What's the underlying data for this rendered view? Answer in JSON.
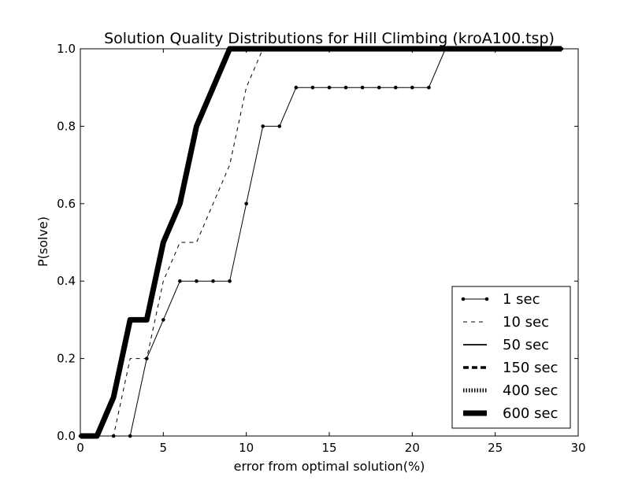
{
  "chart_data": {
    "type": "line",
    "title": "Solution Quality Distributions for Hill Climbing (kroA100.tsp)",
    "xlabel": "error from optimal solution(%)",
    "ylabel": "P(solve)",
    "xlim": [
      0,
      30
    ],
    "ylim": [
      0,
      1
    ],
    "xticks": [
      "0",
      "5",
      "10",
      "15",
      "20",
      "25",
      "30"
    ],
    "yticks": [
      "0.0",
      "0.2",
      "0.4",
      "0.6",
      "0.8",
      "1.0"
    ],
    "grid": false,
    "legend_position": "bottom-right",
    "series": [
      {
        "name": "1 sec",
        "style": "solid-marker",
        "x": [
          0,
          1,
          2,
          3,
          4,
          5,
          6,
          7,
          8,
          9,
          10,
          11,
          12,
          13,
          14,
          15,
          16,
          17,
          18,
          19,
          20,
          21,
          22,
          23,
          24,
          25,
          26,
          27,
          28,
          29
        ],
        "y": [
          0,
          0,
          0,
          0,
          0.2,
          0.3,
          0.4,
          0.4,
          0.4,
          0.4,
          0.6,
          0.8,
          0.8,
          0.9,
          0.9,
          0.9,
          0.9,
          0.9,
          0.9,
          0.9,
          0.9,
          0.9,
          1.0,
          1.0,
          1.0,
          1.0,
          1.0,
          1.0,
          1.0,
          1.0
        ]
      },
      {
        "name": "10 sec",
        "style": "dashed",
        "x": [
          0,
          1,
          2,
          3,
          4,
          5,
          6,
          7,
          8,
          9,
          10,
          11,
          12,
          29
        ],
        "y": [
          0,
          0,
          0,
          0.2,
          0.2,
          0.4,
          0.5,
          0.5,
          0.6,
          0.7,
          0.9,
          1.0,
          1.0,
          1.0
        ]
      },
      {
        "name": "50 sec",
        "style": "solid",
        "x": [
          0,
          1,
          2,
          3,
          4,
          5,
          6,
          7,
          8,
          9,
          29
        ],
        "y": [
          0,
          0,
          0.1,
          0.3,
          0.3,
          0.5,
          0.6,
          0.8,
          0.9,
          1.0,
          1.0
        ]
      },
      {
        "name": "150 sec",
        "style": "dashed-thick",
        "x": [
          0,
          1,
          2,
          3,
          4,
          5,
          6,
          7,
          8,
          9,
          29
        ],
        "y": [
          0,
          0,
          0.1,
          0.3,
          0.3,
          0.5,
          0.6,
          0.8,
          0.9,
          1.0,
          1.0
        ]
      },
      {
        "name": "400 sec",
        "style": "dotted-thick",
        "x": [
          0,
          1,
          2,
          3,
          4,
          5,
          6,
          7,
          8,
          9,
          29
        ],
        "y": [
          0,
          0,
          0.1,
          0.3,
          0.3,
          0.5,
          0.6,
          0.8,
          0.9,
          1.0,
          1.0
        ]
      },
      {
        "name": "600 sec",
        "style": "solid-heavy",
        "x": [
          0,
          1,
          2,
          3,
          4,
          5,
          6,
          7,
          8,
          9,
          29
        ],
        "y": [
          0,
          0,
          0.1,
          0.3,
          0.3,
          0.5,
          0.6,
          0.8,
          0.9,
          1.0,
          1.0
        ]
      }
    ]
  }
}
